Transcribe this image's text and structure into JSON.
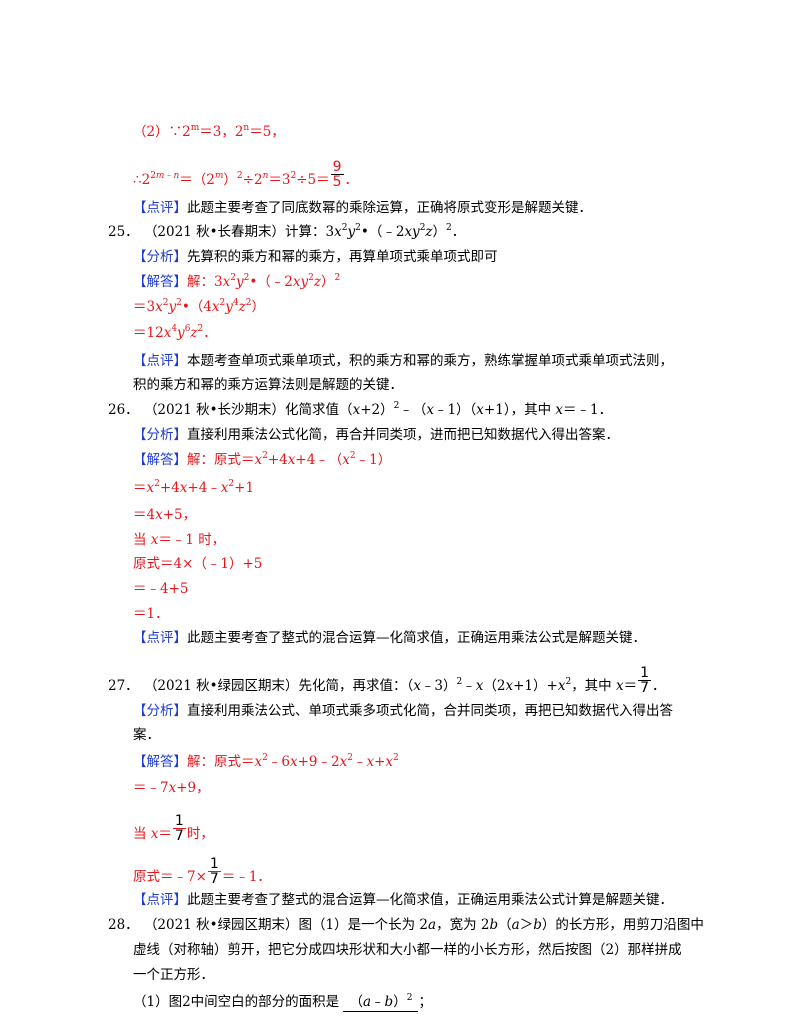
{
  "q24_part2": {
    "l1": "（2）∵2ᵐ＝3，2ⁿ＝5，",
    "l2_pre": "∴2",
    "l2_exp": "2m﹣n",
    "l2_mid": "＝（2ᵐ）²÷2ⁿ＝3²÷5＝",
    "l2_num": "9",
    "l2_den": "5",
    "l2_end": "．",
    "comment_tag": "【点评】",
    "comment": "此题主要考查了同底数幂的乘除运算，正确将原式变形是解题关键．"
  },
  "q25": {
    "number": "25．",
    "source": "（2021秋•长春期末）计算：",
    "expr": "3x²y²•（﹣2xy²z）².",
    "analysis_tag": "【分析】",
    "analysis": "先算积的乘方和幂的乘方，再算单项式乘单项式即可",
    "answer_tag": "【解答】",
    "s1": "解：3x²y²•（﹣2xy²z）²",
    "s2": "＝3x²y²•（4x²y⁴z²）",
    "s3": "＝12x⁴y⁶z².",
    "comment_tag": "【点评】",
    "comment1": "本题考查单项式乘单项式，积的乘方和幂的乘方，熟练掌握单项式乘单项式法则，",
    "comment2": "积的乘方和幂的乘方运算法则是解题的关键．"
  },
  "q26": {
    "number": "26．",
    "source": "（2021秋•长沙期末）化简求值（x+2）²﹣（x﹣1）（x+1），其中x＝﹣1．",
    "analysis_tag": "【分析】",
    "analysis": "直接利用乘法公式化简，再合并同类项，进而把已知数据代入得出答案．",
    "answer_tag": "【解答】",
    "s1": "解：原式＝x²+4x+4﹣（x²﹣1）",
    "s2": "＝x²+4x+4﹣x²+1",
    "s3": "＝4x+5，",
    "s4": "当x＝﹣1时，",
    "s5": "原式＝4×（﹣1）+5",
    "s6": "＝﹣4+5",
    "s7": "＝1．",
    "comment_tag": "【点评】",
    "comment": "此题主要考查了整式的混合运算—化简求值，正确运用乘法公式是解题关键．"
  },
  "q27": {
    "number": "27．",
    "source": "（2021秋•绿园区期末）先化简，再求值：（x﹣3）²﹣x（2x+1）+x²，其中x＝",
    "frac_num": "1",
    "frac_den": "7",
    "end": "．",
    "analysis_tag": "【分析】",
    "analysis1": "直接利用乘法公式、单项式乘多项式化简，合并同类项，再把已知数据代入得出答",
    "analysis2": "案．",
    "answer_tag": "【解答】",
    "s1": "解：原式＝x²﹣6x+9﹣2x²﹣x+x²",
    "s2": "＝﹣7x+9，",
    "s3_pre": "当x＝",
    "s3_post": "时，",
    "s4_pre": "原式＝﹣7×",
    "s4_post": "＝﹣1．",
    "comment_tag": "【点评】",
    "comment": "此题主要考查了整式的混合运算—化简求值，正确运用乘法公式计算是解题关键．"
  },
  "q28": {
    "number": "28．",
    "l1": "（2021秋•绿园区期末）图（1）是一个长为2a，宽为2b（a＞b）的长方形，用剪刀沿图中",
    "l2": "虚线（对称轴）剪开，把它分成四块形状和大小都一样的小长方形，然后按图（2）那样拼成",
    "l3": "一个正方形．",
    "sub1_pre": "（1）图2中间空白的部分的面积是",
    "sub1_answer": "（a﹣b）²",
    "sub1_end": "；"
  }
}
